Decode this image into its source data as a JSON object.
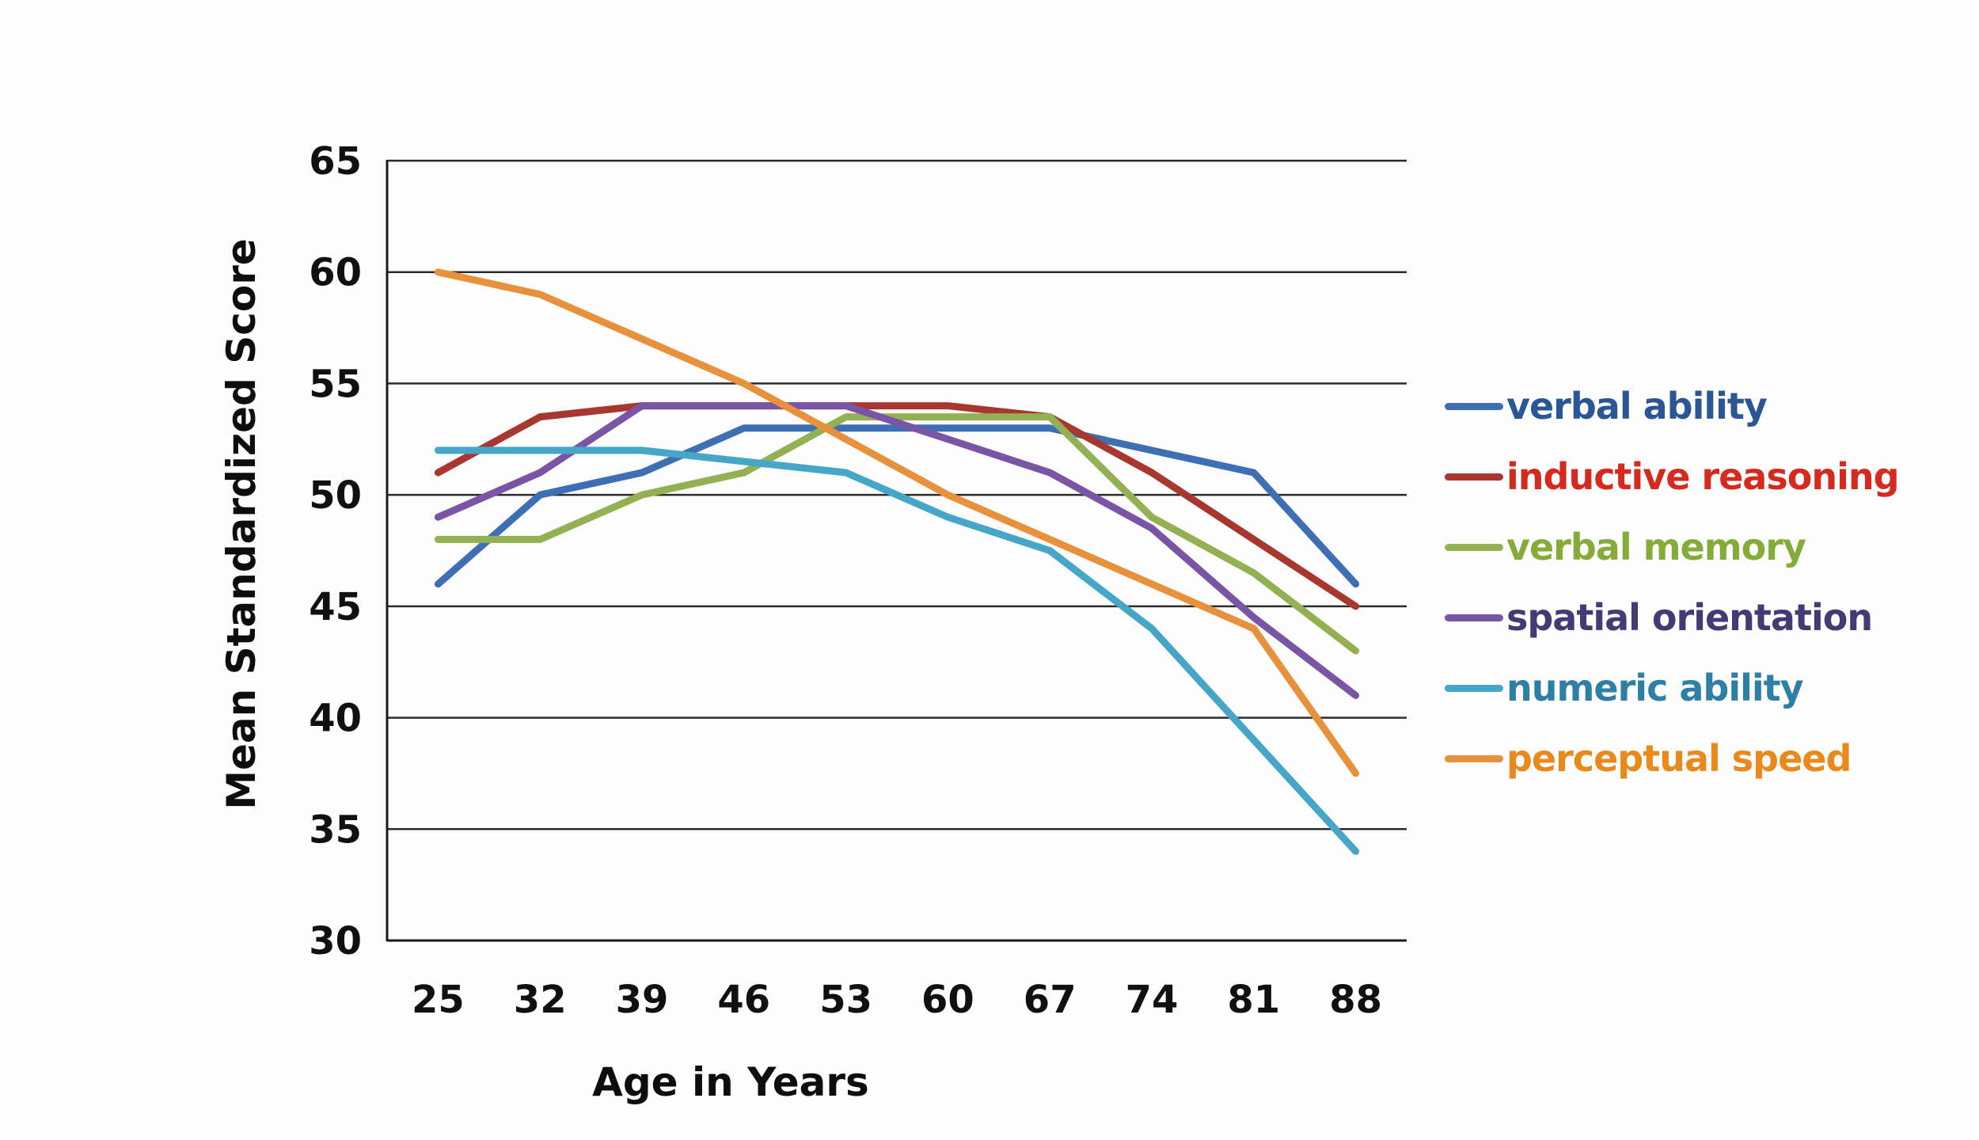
{
  "chart_data": {
    "type": "line",
    "title": "",
    "xlabel": "Age in Years",
    "ylabel": "Mean Standardized Score",
    "categories": [
      25,
      32,
      39,
      46,
      53,
      60,
      67,
      74,
      81,
      88
    ],
    "ylim": [
      30,
      65
    ],
    "ytick_step": 5,
    "grid": "horizontal",
    "legend_position": "right",
    "axis_color": "#1a1a1a",
    "gridline_color": "#2b2b2b",
    "tick_label_color": "#101010",
    "series": [
      {
        "name": "verbal ability",
        "color": "#3E6FB5",
        "label_color": "#2A5694",
        "values": [
          46,
          50,
          51,
          53,
          53,
          53,
          53,
          52,
          51,
          46
        ]
      },
      {
        "name": "inductive reasoning",
        "color": "#A83730",
        "label_color": "#D42B1E",
        "values": [
          51,
          53.5,
          54,
          54,
          54,
          54,
          53.5,
          51,
          48,
          45
        ]
      },
      {
        "name": "verbal memory",
        "color": "#93B152",
        "label_color": "#85AC39",
        "values": [
          48,
          48,
          50,
          51,
          53.5,
          53.5,
          53.5,
          49,
          46.5,
          43
        ]
      },
      {
        "name": "spatial orientation",
        "color": "#7A55A5",
        "label_color": "#433C74",
        "values": [
          49,
          51,
          54,
          54,
          54,
          52.5,
          51,
          48.5,
          44.5,
          41
        ]
      },
      {
        "name": "numeric ability",
        "color": "#46A6C8",
        "label_color": "#2E7FA6",
        "values": [
          52,
          52,
          52,
          51.5,
          51,
          49,
          47.5,
          44,
          39,
          34
        ]
      },
      {
        "name": "perceptual speed",
        "color": "#E8913C",
        "label_color": "#E9891C",
        "values": [
          60,
          59,
          57,
          55,
          52.5,
          50,
          48,
          46,
          44,
          37.5
        ]
      }
    ]
  }
}
